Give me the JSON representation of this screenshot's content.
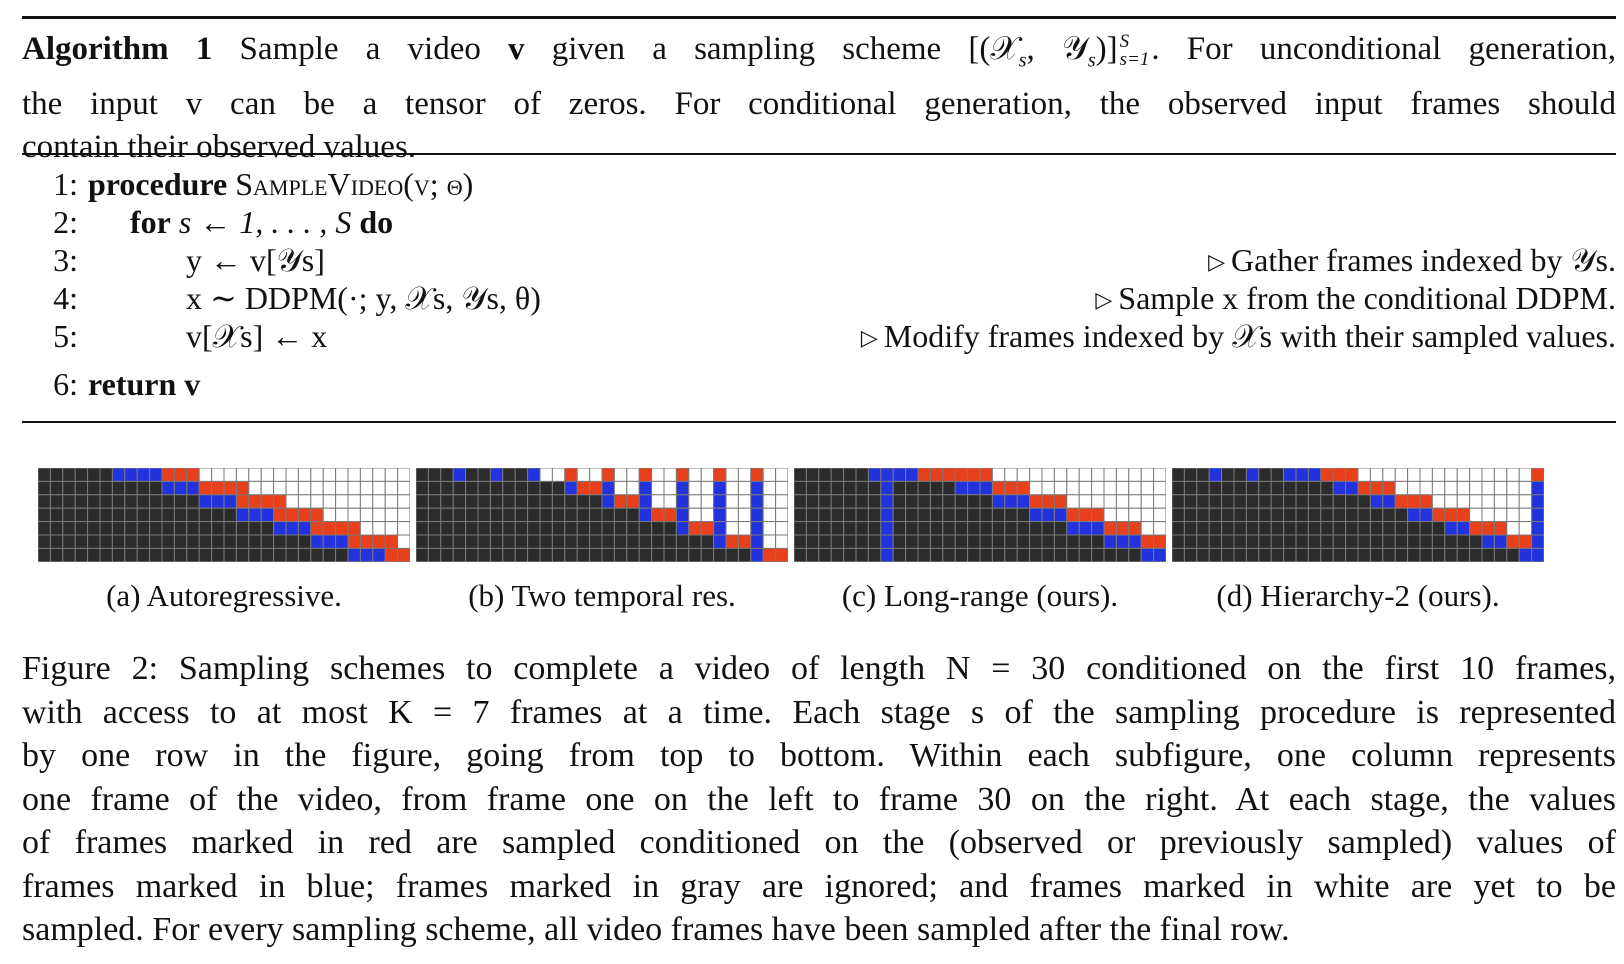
{
  "algorithm": {
    "label": "Algorithm 1",
    "caption_line1_pre": "Sample a video ",
    "caption_line1_v": "v",
    "caption_line1_mid": " given a sampling scheme [(𝒳",
    "caption_line1_s1": "s",
    "caption_line1_comma": ", 𝒴",
    "caption_line1_s2": "s",
    "caption_line1_close": ")]",
    "caption_line1_sup": "S",
    "caption_line1_sub": "s=1",
    "caption_line1_post": ". For unconditional generation,",
    "caption_line2": "the input v can be a tensor of zeros. For conditional generation, the observed input frames should",
    "caption_line3": "contain their observed values.",
    "lines": [
      {
        "num": "1:",
        "kw": "procedure",
        "text": "SampleVideo(v; θ)",
        "comment": ""
      },
      {
        "num": "2:",
        "kw": "for",
        "text": "s ← 1, . . . , S",
        "kw2": "do",
        "comment": ""
      },
      {
        "num": "3:",
        "text": "y ← v[𝒴s]",
        "comment": "Gather frames indexed by 𝒴s."
      },
      {
        "num": "4:",
        "text": "x ∼ DDPM(·; y, 𝒳s, 𝒴s, θ)",
        "comment": "Sample x from the conditional DDPM."
      },
      {
        "num": "5:",
        "text": "v[𝒳s] ← x",
        "comment": "Modify frames indexed by 𝒳s with their sampled values."
      },
      {
        "num": "6:",
        "kw": "return",
        "text": "v",
        "comment": ""
      }
    ]
  },
  "subfigures": [
    {
      "label": "(a) Autoregressive."
    },
    {
      "label": "(b) Two temporal res."
    },
    {
      "label": "(c) Long-range (ours)."
    },
    {
      "label": "(d) Hierarchy-2 (ours)."
    }
  ],
  "colors": {
    "observed": "#2233dd",
    "sampled": "#e8401c",
    "ignored": "#2b2b2b",
    "unsampled": "#ffffff",
    "grid": "#7a7a7a"
  },
  "figure_caption": {
    "lines": [
      "Figure 2: Sampling schemes to complete a video of length N = 30 conditioned on the first 10 frames,",
      "with access to at most K = 7 frames at a time. Each stage s of the sampling procedure is represented",
      "by one row in the figure, going from top to bottom. Within each subfigure, one column represents",
      "one frame of the video, from frame one on the left to frame 30 on the right. At each stage, the values",
      "of frames marked in red are sampled conditioned on the (observed or previously sampled) values of",
      "frames marked in blue; frames marked in gray are ignored; and frames marked in white are yet to be",
      "sampled. For every sampling scheme, all video frames have been sampled after the final row."
    ]
  }
}
